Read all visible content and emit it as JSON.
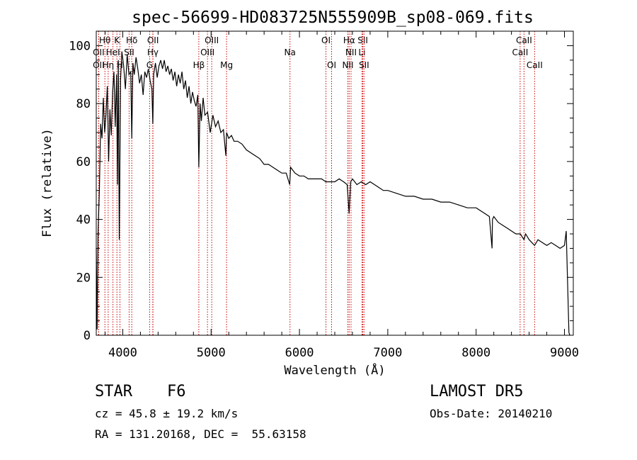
{
  "chart_data": {
    "type": "line",
    "title": "spec-56699-HD083725N555909B_sp08-069.fits",
    "xlabel": "Wavelength (Å)",
    "ylabel": "Flux (relative)",
    "xlim": [
      3700,
      9100
    ],
    "ylim": [
      0,
      105
    ],
    "xticks": [
      4000,
      5000,
      6000,
      7000,
      8000,
      9000
    ],
    "yticks": [
      0,
      20,
      40,
      60,
      80,
      100
    ],
    "grid": false,
    "series": [
      {
        "x": [
          3700,
          3710,
          3720,
          3735,
          3750,
          3765,
          3780,
          3795,
          3810,
          3825,
          3840,
          3855,
          3870,
          3885,
          3900,
          3915,
          3930,
          3940,
          3950,
          3960,
          3968,
          3975,
          3990,
          4010,
          4030,
          4050,
          4070,
          4090,
          4102,
          4115,
          4130,
          4150,
          4170,
          4190,
          4210,
          4230,
          4250,
          4270,
          4290,
          4310,
          4330,
          4340,
          4350,
          4370,
          4390,
          4410,
          4430,
          4450,
          4470,
          4490,
          4510,
          4530,
          4550,
          4570,
          4590,
          4610,
          4630,
          4650,
          4670,
          4690,
          4710,
          4730,
          4750,
          4770,
          4790,
          4810,
          4830,
          4850,
          4861,
          4875,
          4890,
          4910,
          4930,
          4960,
          4990,
          5020,
          5050,
          5080,
          5110,
          5140,
          5167,
          5175,
          5200,
          5230,
          5260,
          5300,
          5350,
          5400,
          5450,
          5500,
          5550,
          5600,
          5650,
          5700,
          5750,
          5800,
          5850,
          5890,
          5900,
          5950,
          6000,
          6050,
          6100,
          6150,
          6200,
          6250,
          6300,
          6350,
          6400,
          6450,
          6500,
          6540,
          6563,
          6580,
          6600,
          6650,
          6700,
          6750,
          6800,
          6850,
          6900,
          6950,
          7000,
          7100,
          7200,
          7300,
          7400,
          7500,
          7600,
          7700,
          7800,
          7900,
          8000,
          8100,
          8150,
          8180,
          8185,
          8200,
          8250,
          8300,
          8350,
          8400,
          8450,
          8500,
          8542,
          8560,
          8600,
          8662,
          8700,
          8750,
          8800,
          8850,
          8900,
          8950,
          9000,
          9020,
          9050,
          9060
        ],
        "y": [
          30,
          2,
          35,
          50,
          73,
          68,
          82,
          70,
          76,
          86,
          60,
          78,
          69,
          84,
          91,
          72,
          90,
          52,
          95,
          33,
          62,
          88,
          98,
          93,
          85,
          97,
          90,
          91,
          68,
          94,
          90,
          96,
          92,
          87,
          90,
          83,
          91,
          89,
          92,
          88,
          85,
          73,
          90,
          94,
          89,
          93,
          95,
          92,
          95,
          91,
          93,
          90,
          92,
          88,
          91,
          86,
          90,
          87,
          91,
          85,
          88,
          82,
          86,
          80,
          84,
          81,
          79,
          83,
          58,
          80,
          74,
          82,
          76,
          77,
          70,
          76,
          72,
          74,
          70,
          71,
          62,
          70,
          68,
          69,
          67,
          67,
          66,
          64,
          63,
          62,
          61,
          59,
          59,
          58,
          57,
          56,
          56,
          52,
          58,
          56,
          55,
          55,
          54,
          54,
          54,
          54,
          53,
          53,
          53,
          54,
          53,
          52,
          42,
          53,
          54,
          52,
          53,
          52,
          53,
          52,
          51,
          50,
          50,
          49,
          48,
          48,
          47,
          47,
          46,
          46,
          45,
          44,
          44,
          42,
          41,
          30,
          40,
          41,
          39,
          38,
          37,
          36,
          35,
          35,
          33,
          35,
          33,
          31,
          33,
          32,
          31,
          32,
          31,
          30,
          31,
          36,
          1,
          0
        ]
      }
    ],
    "line_markers": [
      {
        "label": "Hθ",
        "x": 3798,
        "row": 1
      },
      {
        "label": "K",
        "x": 3934,
        "row": 1
      },
      {
        "label": "Hδ",
        "x": 4102,
        "row": 1
      },
      {
        "label": "OII",
        "x": 4342,
        "row": 1
      },
      {
        "label": "OIII",
        "x": 5007,
        "row": 1
      },
      {
        "label": "OI",
        "x": 6300,
        "row": 1
      },
      {
        "label": "Hα",
        "x": 6563,
        "row": 1
      },
      {
        "label": "SII",
        "x": 6717,
        "row": 1
      },
      {
        "label": "CaII",
        "x": 8542,
        "row": 1
      },
      {
        "label": "OII",
        "x": 3727,
        "row": 2
      },
      {
        "label": "HeI",
        "x": 3889,
        "row": 2
      },
      {
        "label": "SII",
        "x": 4072,
        "row": 2
      },
      {
        "label": "Hγ",
        "x": 4340,
        "row": 2
      },
      {
        "label": "OIII",
        "x": 4959,
        "row": 2
      },
      {
        "label": "Na",
        "x": 5893,
        "row": 2
      },
      {
        "label": "NII",
        "x": 6584,
        "row": 2
      },
      {
        "label": "Li",
        "x": 6708,
        "row": 2
      },
      {
        "label": "CaII",
        "x": 8498,
        "row": 2
      },
      {
        "label": "OII",
        "x": 3727,
        "row": 3
      },
      {
        "label": "Hη",
        "x": 3835,
        "row": 3
      },
      {
        "label": "H",
        "x": 3968,
        "row": 3
      },
      {
        "label": "G",
        "x": 4304,
        "row": 3
      },
      {
        "label": "Hβ",
        "x": 4861,
        "row": 3
      },
      {
        "label": "Mg",
        "x": 5175,
        "row": 3
      },
      {
        "label": "OI",
        "x": 6364,
        "row": 3
      },
      {
        "label": "NII",
        "x": 6548,
        "row": 3
      },
      {
        "label": "SII",
        "x": 6731,
        "row": 3
      },
      {
        "label": "CaII",
        "x": 8662,
        "row": 3
      }
    ]
  },
  "footer": {
    "object_class": "STAR",
    "subclass": "F6",
    "redshift": "cz = 45.8 ± 19.2 km/s",
    "coordinates": "RA = 131.20168, DEC =  55.63158",
    "survey": "LAMOST DR5",
    "obs_date": "Obs-Date: 20140210"
  },
  "colors": {
    "marker_line": "#cc0000",
    "spectrum": "#000000",
    "axes": "#000000"
  }
}
